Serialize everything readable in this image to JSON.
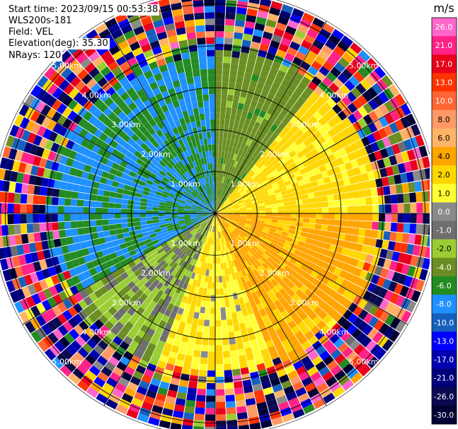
{
  "header": {
    "start_time": "Start time: 2023/09/15 00:53:38",
    "instrument": "WLS200s-181",
    "field": "Field: VEL",
    "elevation": "Elevation(deg): 35.30",
    "nrays": "NRays: 120"
  },
  "chart_data": {
    "type": "heatmap",
    "projection": "polar (PPI)",
    "field": "VEL",
    "units": "m/s",
    "n_rays": 120,
    "range_rings_km": [
      1.0,
      2.0,
      3.0,
      4.0,
      5.0
    ],
    "ring_labels": [
      "1.00km",
      "2.00km",
      "3.00km",
      "4.00km",
      "5.00km"
    ],
    "max_range_km": 5.3,
    "spoke_angles_deg": [
      0,
      30,
      60,
      90,
      120,
      150,
      180,
      210,
      240,
      270,
      300,
      330
    ],
    "colorbar": {
      "label": "m/s",
      "ticks": [
        "26.0",
        "21.0",
        "17.0",
        "13.0",
        "10.0",
        "8.0",
        "6.0",
        "4.0",
        "2.0",
        "1.0",
        "0.0",
        "-1.0",
        "-2.0",
        "-4.0",
        "-6.0",
        "-8.0",
        "-10.0",
        "-13.0",
        "-17.0",
        "-21.0",
        "-26.0",
        "-30.0"
      ],
      "colors": [
        "#ff66cc",
        "#ff2288",
        "#e8001c",
        "#ff3300",
        "#ff6633",
        "#ff9966",
        "#ffb366",
        "#ffa500",
        "#ffd700",
        "#ffff33",
        "#8a8a8a",
        "#6e6e6e",
        "#9acd32",
        "#6b8e23",
        "#228b22",
        "#1e90ff",
        "#1560bd",
        "#0000ff",
        "#0000b0",
        "#00007a",
        "#0a0a50",
        "#000033"
      ]
    },
    "sectors": [
      {
        "from_deg": 240,
        "to_deg": 360,
        "velocity_ms": -6.0,
        "description_color": "#228b22"
      },
      {
        "from_deg": 0,
        "to_deg": 40,
        "velocity_ms": -3.0,
        "description_color": "#9acd32"
      },
      {
        "from_deg": 40,
        "to_deg": 90,
        "velocity_ms": 2.5,
        "description_color": "#ffff33"
      },
      {
        "from_deg": 90,
        "to_deg": 160,
        "velocity_ms": 4.5,
        "description_color": "#ffa500"
      },
      {
        "from_deg": 160,
        "to_deg": 200,
        "velocity_ms": 2.0,
        "description_color": "#ffff33"
      },
      {
        "from_deg": 200,
        "to_deg": 240,
        "velocity_ms": -1.5,
        "description_color": "#9acd32"
      }
    ]
  }
}
